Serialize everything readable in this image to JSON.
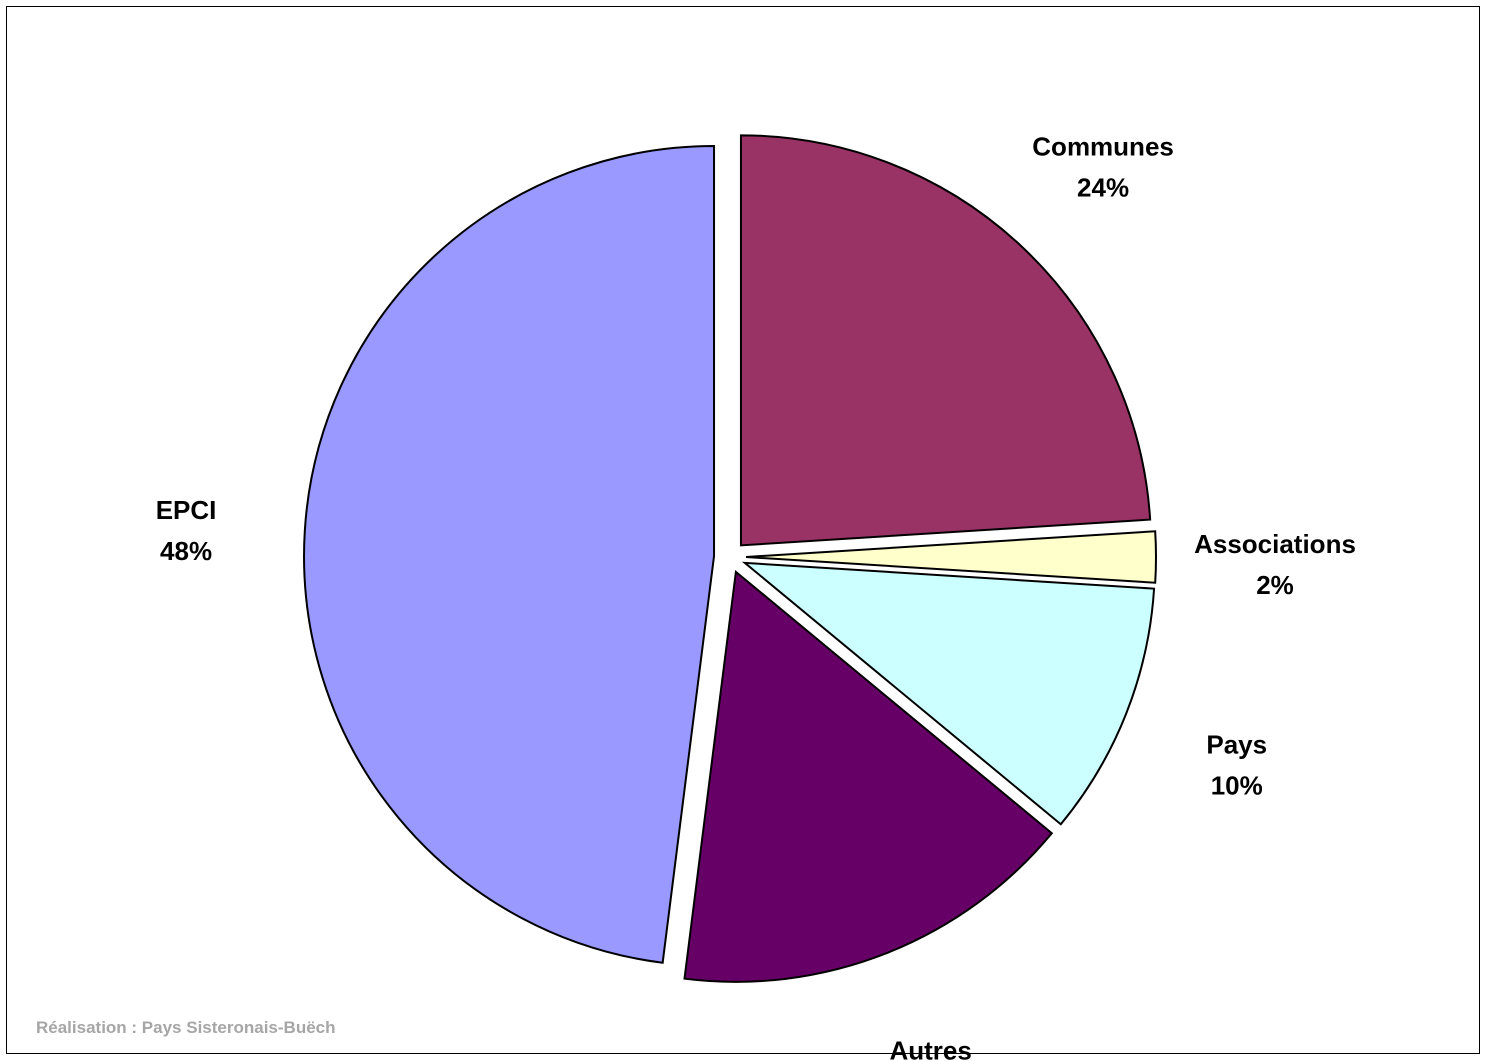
{
  "chart_data": {
    "type": "pie",
    "slices": [
      {
        "name": "Communes",
        "value": 24,
        "label": "24%",
        "color": "#993366"
      },
      {
        "name": "Associations",
        "value": 2,
        "label": "2%",
        "color": "#FFFFCC"
      },
      {
        "name": "Pays",
        "value": 10,
        "label": "10%",
        "color": "#CCFFFF"
      },
      {
        "name": "Autres",
        "value": 16,
        "label": "16%",
        "color": "#660066"
      },
      {
        "name": "EPCI",
        "value": 48,
        "label": "48%",
        "color": "#9999FF"
      }
    ],
    "start": "12 o'clock",
    "direction": "clockwise",
    "exploded": true,
    "legend": "none"
  },
  "credit": "Réalisation : Pays Sisteronais-Buëch"
}
